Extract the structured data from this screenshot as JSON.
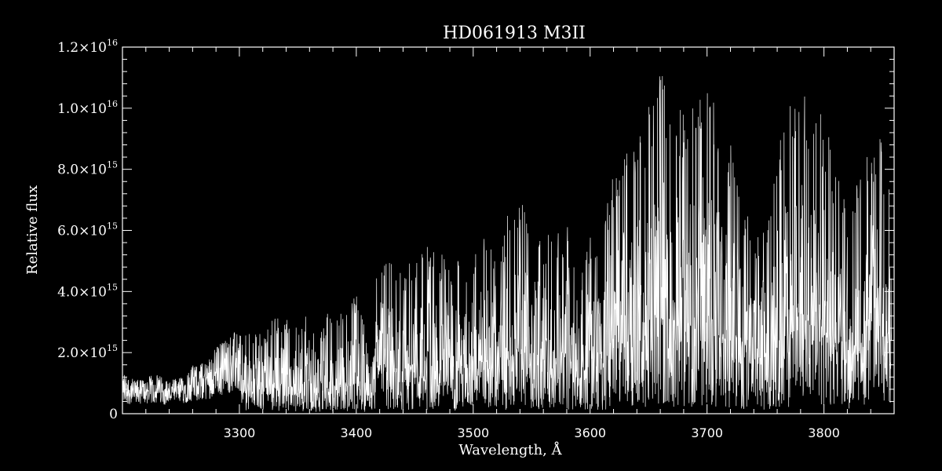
{
  "chart_data": {
    "type": "line",
    "title": "HD061913   M3II",
    "xlabel": "Wavelength, Å",
    "ylabel": "Relative flux",
    "xlim": [
      3200,
      3860
    ],
    "ylim": [
      0,
      1.2e+16
    ],
    "x_ticks": [
      {
        "value": 3300,
        "label": "3300"
      },
      {
        "value": 3400,
        "label": "3400"
      },
      {
        "value": 3500,
        "label": "3500"
      },
      {
        "value": 3600,
        "label": "3600"
      },
      {
        "value": 3700,
        "label": "3700"
      },
      {
        "value": 3800,
        "label": "3800"
      }
    ],
    "y_ticks": [
      {
        "value": 0,
        "mantissa": "0",
        "exponent": ""
      },
      {
        "value": 2000000000000000.0,
        "mantissa": "2.0×10",
        "exponent": "15"
      },
      {
        "value": 4000000000000000.0,
        "mantissa": "4.0×10",
        "exponent": "15"
      },
      {
        "value": 6000000000000000.0,
        "mantissa": "6.0×10",
        "exponent": "15"
      },
      {
        "value": 8000000000000000.0,
        "mantissa": "8.0×10",
        "exponent": "15"
      },
      {
        "value": 1e+16,
        "mantissa": "1.0×10",
        "exponent": "16"
      },
      {
        "value": 1.2e+16,
        "mantissa": "1.2×10",
        "exponent": "16"
      }
    ],
    "grid": false,
    "colors": {
      "background": "#000000",
      "foreground": "#ffffff"
    },
    "series": [
      {
        "x": [
          3200,
          3210,
          3220,
          3230,
          3240,
          3250,
          3260,
          3270,
          3280,
          3290,
          3300,
          3310,
          3320,
          3330,
          3340,
          3350,
          3360,
          3370,
          3380,
          3390,
          3400,
          3410,
          3420,
          3430,
          3440,
          3450,
          3460,
          3470,
          3480,
          3490,
          3500,
          3510,
          3520,
          3530,
          3540,
          3550,
          3560,
          3570,
          3580,
          3590,
          3600,
          3610,
          3620,
          3630,
          3640,
          3650,
          3660,
          3670,
          3680,
          3690,
          3700,
          3710,
          3720,
          3730,
          3740,
          3750,
          3760,
          3770,
          3780,
          3790,
          3800,
          3810,
          3820,
          3830,
          3840,
          3850,
          3858
        ],
        "y": [
          1400000000000000.0,
          1100000000000000.0,
          1200000000000000.0,
          1300000000000000.0,
          1100000000000000.0,
          1200000000000000.0,
          1600000000000000.0,
          1700000000000000.0,
          2200000000000000.0,
          2600000000000000.0,
          2700000000000000.0,
          2800000000000000.0,
          2600000000000000.0,
          3200000000000000.0,
          3100000000000000.0,
          3100000000000000.0,
          3500000000000000.0,
          2700000000000000.0,
          3800000000000000.0,
          3300000000000000.0,
          3900000000000000.0,
          2400000000000000.0,
          5300000000000000.0,
          5100000000000000.0,
          4500000000000000.0,
          5400000000000000.0,
          5500000000000000.0,
          5200000000000000.0,
          5300000000000000.0,
          5000000000000000.0,
          5400000000000000.0,
          6200000000000000.0,
          5000000000000000.0,
          6600000000000000.0,
          7000000000000000.0,
          6800000000000000.0,
          6000000000000000.0,
          5800000000000000.0,
          6300000000000000.0,
          4400000000000000.0,
          5900000000000000.0,
          5500000000000000.0,
          8400000000000000.0,
          8800000000000000.0,
          9100000000000000.0,
          1e+16,
          1.13e+16,
          1.05e+16,
          9800000000000000.0,
          1.02e+16,
          1.17e+16,
          9500000000000000.0,
          9000000000000000.0,
          7500000000000000.0,
          5500000000000000.0,
          6500000000000000.0,
          8600000000000000.0,
          1.02e+16,
          1.14e+16,
          9600000000000000.0,
          1e+16,
          8000000000000000.0,
          6800000000000000.0,
          7800000000000000.0,
          9600000000000000.0,
          9000000000000000.0,
          7500000000000000.0
        ]
      }
    ]
  }
}
